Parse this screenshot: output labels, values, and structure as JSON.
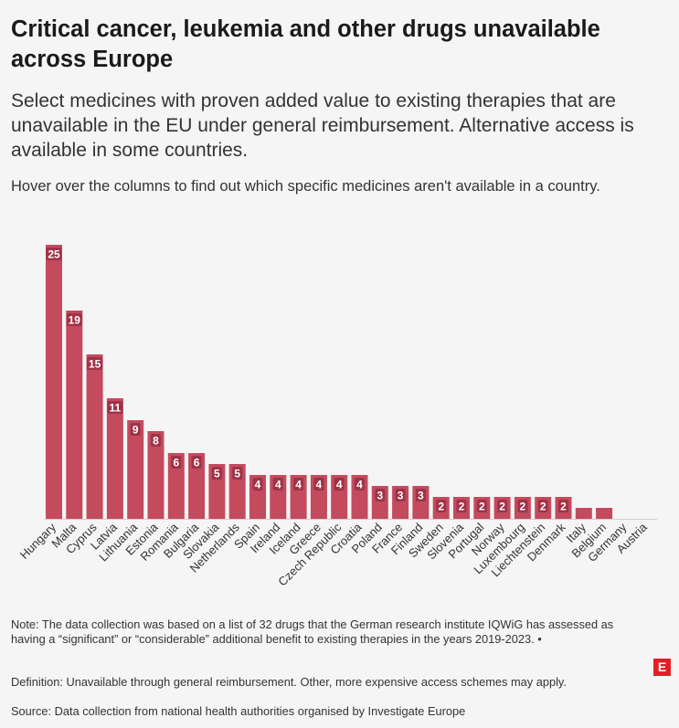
{
  "header": {
    "title": "Critical cancer, leukemia and other drugs unavailable across Europe",
    "subtitle": "Select medicines with proven added value to existing therapies that are unavailable in the EU under general reimbursement. Alternative access is available in some countries.",
    "instruction": "Hover over the columns to find out which specific medicines aren't available in a country."
  },
  "colors": {
    "bar": "#c44a5e",
    "bar_label_bg": "#9e3347",
    "bar_label_text": "#ffffff",
    "brand": "#e31f26"
  },
  "chart_data": {
    "type": "bar",
    "categories": [
      "Hungary",
      "Malta",
      "Cyprus",
      "Latvia",
      "Lithuania",
      "Estonia",
      "Romania",
      "Bulgaria",
      "Slovakia",
      "Netherlands",
      "Spain",
      "Ireland",
      "Iceland",
      "Greece",
      "Czech Republic",
      "Croatia",
      "Poland",
      "France",
      "Finland",
      "Sweden",
      "Slovenia",
      "Portugal",
      "Norway",
      "Luxembourg",
      "Liechtenstein",
      "Denmark",
      "Italy",
      "Belgium",
      "Germany",
      "Austria"
    ],
    "values": [
      25,
      19,
      15,
      11,
      9,
      8,
      6,
      6,
      5,
      5,
      4,
      4,
      4,
      4,
      4,
      4,
      3,
      3,
      3,
      2,
      2,
      2,
      2,
      2,
      2,
      2,
      1,
      1,
      0,
      0
    ],
    "labels": [
      "25",
      "19",
      "15",
      "11",
      "9",
      "8",
      "6",
      "6",
      "5",
      "5",
      "4",
      "4",
      "4",
      "4",
      "4",
      "4",
      "3",
      "3",
      "3",
      "2",
      "2",
      "2",
      "2",
      "2",
      "2",
      "2",
      "",
      "",
      "",
      ""
    ],
    "ylim": [
      0,
      25
    ],
    "grid": false,
    "legend": "none"
  },
  "footer": {
    "note": "Note: The data collection was based on a list of 32 drugs that the German research institute IQWiG has assessed as having a “significant” or “considerable” additional benefit to existing therapies in the years 2019-2023. •",
    "definition": "Definition: Unavailable through general reimbursement. Other, more expensive access schemes may apply.",
    "source": "Source: Data collection from national health authorities organised by Investigate Europe",
    "logo_letter": "E"
  }
}
